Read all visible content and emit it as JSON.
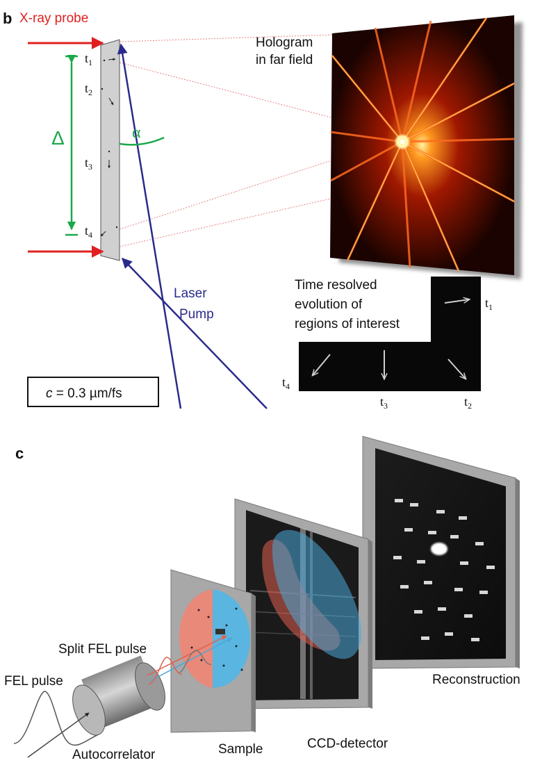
{
  "panel_b": {
    "panel_label": "b",
    "xray_probe": "X-ray probe",
    "hologram_label_line1": "Hologram",
    "hologram_label_line2": "in far field",
    "delta_symbol": "Δ",
    "alpha_symbol": "α",
    "laser_label_line1": "Laser",
    "laser_label_line2": "Pump",
    "time_resolved_line1": "Time resolved",
    "time_resolved_line2": "evolution of",
    "time_resolved_line3": "regions of interest",
    "speed_c": "c",
    "speed_rest": " = 0.3 µm/fs",
    "time_labels": [
      {
        "t": "t",
        "sub": "1"
      },
      {
        "t": "t",
        "sub": "2"
      },
      {
        "t": "t",
        "sub": "3"
      },
      {
        "t": "t",
        "sub": "4"
      }
    ],
    "colors": {
      "probe": "#e02020",
      "delta": "#1aa84a",
      "laser": "#2a2a8c",
      "dashed": "#e88080",
      "sample": "#d0d0d0"
    }
  },
  "panel_c": {
    "panel_label": "c",
    "fel_pulse": "FEL pulse",
    "split_fel_pulse": "Split FEL pulse",
    "autocorrelator": "Autocorrelator",
    "sample": "Sample",
    "ccd_detector": "CCD-detector",
    "reconstruction": "Reconstruction",
    "colors": {
      "red_beam": "#e06050",
      "blue_beam": "#4aa8d8"
    }
  }
}
